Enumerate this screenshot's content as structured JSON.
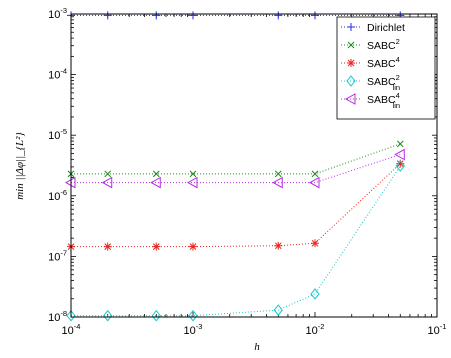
{
  "chart_data": {
    "type": "scatter",
    "xlabel": "h",
    "ylabel": "min ||Δφ||_{L²}",
    "xscale": "log",
    "yscale": "log",
    "xlim": [
      0.0001,
      0.1
    ],
    "ylim": [
      1e-08,
      0.001
    ],
    "grid": false,
    "legend_position": "top-right",
    "x_ticks": [
      {
        "value": 0.0001,
        "base": "10",
        "exp": "-4"
      },
      {
        "value": 0.001,
        "base": "10",
        "exp": "-3"
      },
      {
        "value": 0.01,
        "base": "10",
        "exp": "-2"
      },
      {
        "value": 0.1,
        "base": "10",
        "exp": "-1"
      }
    ],
    "y_ticks": [
      {
        "value": 1e-08,
        "base": "10",
        "exp": "-8"
      },
      {
        "value": 1e-07,
        "base": "10",
        "exp": "-7"
      },
      {
        "value": 1e-06,
        "base": "10",
        "exp": "-6"
      },
      {
        "value": 1e-05,
        "base": "10",
        "exp": "-5"
      },
      {
        "value": 0.0001,
        "base": "10",
        "exp": "-4"
      },
      {
        "value": 0.001,
        "base": "10",
        "exp": "-3"
      }
    ],
    "x": [
      0.0001,
      0.0002,
      0.0005,
      0.001,
      0.005,
      0.01,
      0.05
    ],
    "series": [
      {
        "name": "Dirichlet",
        "label_base": "Dirichlet",
        "label_sup": "",
        "label_sub": "",
        "marker": "plus",
        "color": "#1f2ee6",
        "values": [
          0.00095,
          0.00095,
          0.00095,
          0.00095,
          0.00095,
          0.00095,
          0.00095
        ]
      },
      {
        "name": "SABC^2",
        "label_base": "SABC",
        "label_sup": "2",
        "label_sub": "",
        "marker": "x",
        "color": "#1e8a1e",
        "values": [
          2.3e-06,
          2.3e-06,
          2.3e-06,
          2.3e-06,
          2.3e-06,
          2.3e-06,
          7.2e-06
        ]
      },
      {
        "name": "SABC^4",
        "label_base": "SABC",
        "label_sup": "4",
        "label_sub": "",
        "marker": "star",
        "color": "#e8261e",
        "values": [
          1.45e-07,
          1.45e-07,
          1.45e-07,
          1.45e-07,
          1.5e-07,
          1.65e-07,
          3.4e-06
        ]
      },
      {
        "name": "SABC^2_lin",
        "label_base": "SABC",
        "label_sup": "2",
        "label_sub": "lin",
        "marker": "diamond",
        "color": "#12c8cc",
        "values": [
          1.05e-08,
          1.05e-08,
          1.05e-08,
          1.05e-08,
          1.3e-08,
          2.4e-08,
          3.1e-06
        ]
      },
      {
        "name": "SABC^4_lin",
        "label_base": "SABC",
        "label_sup": "4",
        "label_sub": "lin",
        "marker": "triangle-left",
        "color": "#b62ee0",
        "values": [
          1.65e-06,
          1.65e-06,
          1.65e-06,
          1.65e-06,
          1.65e-06,
          1.65e-06,
          4.8e-06
        ]
      }
    ]
  }
}
